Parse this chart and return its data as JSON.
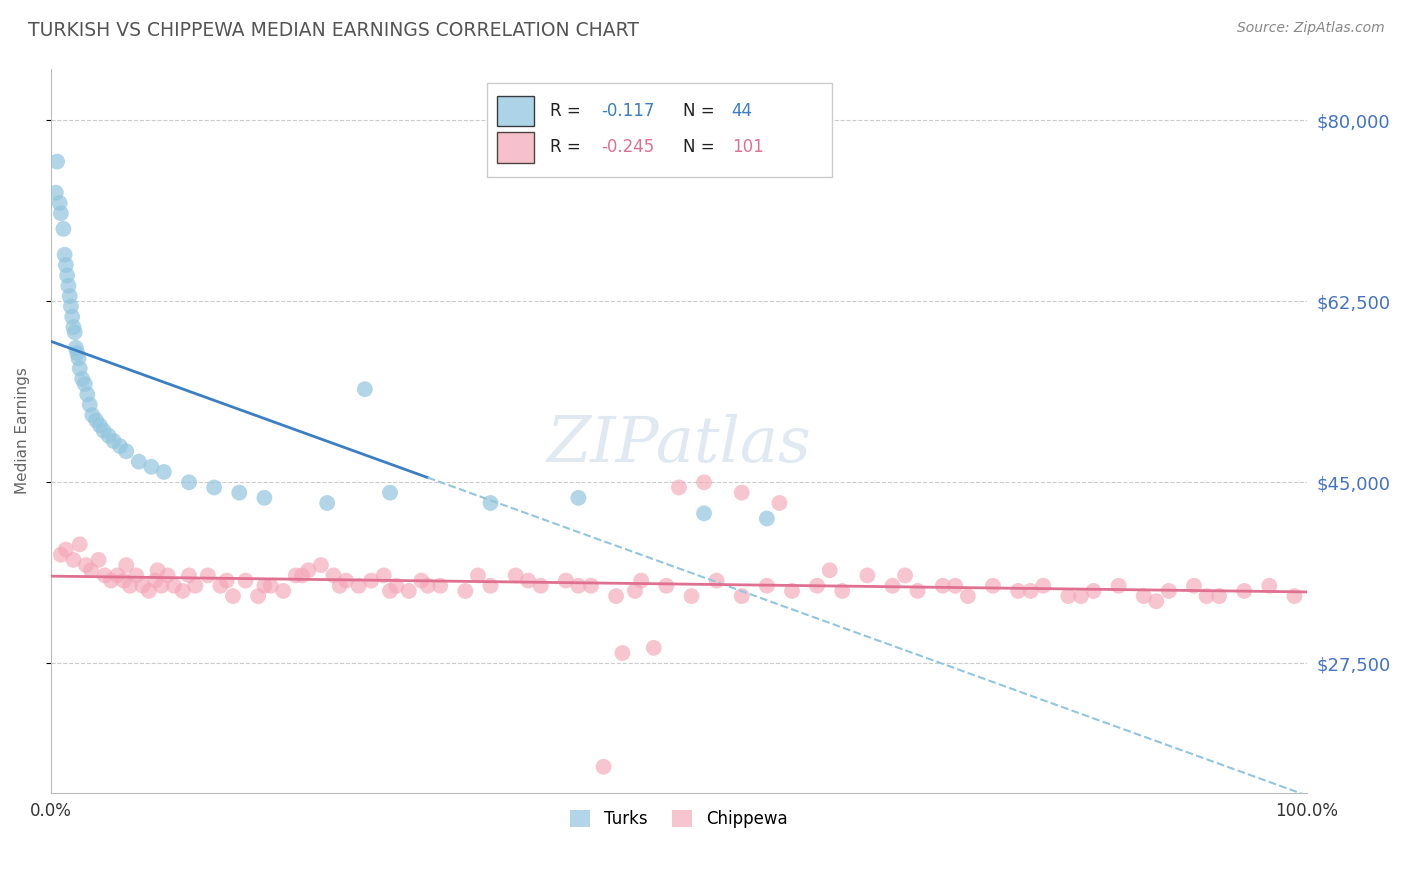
{
  "title": "TURKISH VS CHIPPEWA MEDIAN EARNINGS CORRELATION CHART",
  "source_text": "Source: ZipAtlas.com",
  "ylabel": "Median Earnings",
  "xlim": [
    0.0,
    100.0
  ],
  "ylim": [
    15000,
    85000
  ],
  "yticks": [
    27500,
    45000,
    62500,
    80000
  ],
  "ytick_labels": [
    "$27,500",
    "$45,000",
    "$62,500",
    "$80,000"
  ],
  "turks_color": "#92c5de",
  "chippewa_color": "#f4a6b8",
  "turks_line_color": "#3a7fc1",
  "turks_dash_color": "#92c5de",
  "chippewa_line_color": "#e07090",
  "background_color": "#ffffff",
  "grid_color": "#cccccc",
  "title_color": "#555555",
  "ytick_color": "#4472c4",
  "source": "Source: ZipAtlas.com",
  "watermark": "ZIPatlas",
  "turks_x": [
    0.4,
    0.5,
    0.7,
    0.8,
    1.0,
    1.1,
    1.2,
    1.3,
    1.4,
    1.5,
    1.6,
    1.7,
    1.8,
    1.9,
    2.0,
    2.1,
    2.2,
    2.3,
    2.5,
    2.7,
    2.9,
    3.1,
    3.3,
    3.6,
    3.9,
    4.2,
    4.6,
    5.0,
    5.5,
    6.0,
    7.0,
    8.0,
    9.0,
    11.0,
    13.0,
    15.0,
    17.0,
    22.0,
    27.0,
    35.0,
    42.0,
    52.0,
    57.0,
    25.0
  ],
  "turks_y": [
    73000,
    76000,
    72000,
    71000,
    69500,
    67000,
    66000,
    65000,
    64000,
    63000,
    62000,
    61000,
    60000,
    59500,
    58000,
    57500,
    57000,
    56000,
    55000,
    54500,
    53500,
    52500,
    51500,
    51000,
    50500,
    50000,
    49500,
    49000,
    48500,
    48000,
    47000,
    46500,
    46000,
    45000,
    44500,
    44000,
    43500,
    43000,
    44000,
    43000,
    43500,
    42000,
    41500,
    54000
  ],
  "chippewa_x": [
    0.8,
    1.2,
    1.8,
    2.3,
    2.8,
    3.2,
    3.8,
    4.3,
    4.8,
    5.3,
    5.8,
    6.3,
    6.8,
    7.3,
    7.8,
    8.3,
    8.8,
    9.3,
    9.8,
    10.5,
    11.5,
    12.5,
    13.5,
    14.5,
    15.5,
    16.5,
    17.5,
    18.5,
    19.5,
    20.5,
    21.5,
    22.5,
    23.5,
    24.5,
    25.5,
    26.5,
    27.5,
    28.5,
    29.5,
    31.0,
    33.0,
    35.0,
    37.0,
    39.0,
    41.0,
    43.0,
    45.0,
    47.0,
    49.0,
    51.0,
    53.0,
    55.0,
    57.0,
    59.0,
    61.0,
    63.0,
    65.0,
    67.0,
    69.0,
    71.0,
    73.0,
    75.0,
    77.0,
    79.0,
    81.0,
    83.0,
    85.0,
    87.0,
    89.0,
    91.0,
    93.0,
    95.0,
    97.0,
    99.0,
    50.0,
    52.0,
    55.0,
    58.0,
    62.0,
    68.0,
    72.0,
    78.0,
    82.0,
    88.0,
    92.0,
    6.0,
    8.5,
    11.0,
    14.0,
    17.0,
    20.0,
    23.0,
    27.0,
    30.0,
    34.0,
    38.0,
    42.0,
    46.5,
    48.0,
    45.5,
    44.0
  ],
  "chippewa_y": [
    38000,
    38500,
    37500,
    39000,
    37000,
    36500,
    37500,
    36000,
    35500,
    36000,
    35500,
    35000,
    36000,
    35000,
    34500,
    35500,
    35000,
    36000,
    35000,
    34500,
    35000,
    36000,
    35000,
    34000,
    35500,
    34000,
    35000,
    34500,
    36000,
    36500,
    37000,
    36000,
    35500,
    35000,
    35500,
    36000,
    35000,
    34500,
    35500,
    35000,
    34500,
    35000,
    36000,
    35000,
    35500,
    35000,
    34000,
    35500,
    35000,
    34000,
    35500,
    34000,
    35000,
    34500,
    35000,
    34500,
    36000,
    35000,
    34500,
    35000,
    34000,
    35000,
    34500,
    35000,
    34000,
    34500,
    35000,
    34000,
    34500,
    35000,
    34000,
    34500,
    35000,
    34000,
    44500,
    45000,
    44000,
    43000,
    36500,
    36000,
    35000,
    34500,
    34000,
    33500,
    34000,
    37000,
    36500,
    36000,
    35500,
    35000,
    36000,
    35000,
    34500,
    35000,
    36000,
    35500,
    35000,
    34500,
    29000,
    28500,
    17500
  ]
}
